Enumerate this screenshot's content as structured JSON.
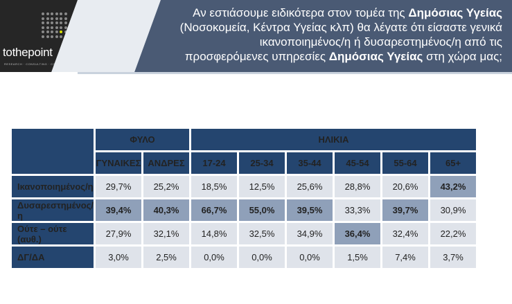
{
  "brand": {
    "logo_text": "tothepoint",
    "subtitle": "RESEARCH · CONSULTING · COMMUNICATION"
  },
  "question": {
    "line1_pre": "Αν εστιάσουμε ειδικότερα στον τομέα της ",
    "line1_bold": "Δημόσιας Υγείας",
    "line2": "(Νοσοκομεία, Κέντρα Υγείας κλπ) θα λέγατε ότι είσαστε γενικά",
    "line3": "ικανοποιημένος/η ή δυσαρεστημένος/η από τις",
    "line4_pre": "προσφερόμενες υπηρεσίες ",
    "line4_bold": "Δημόσιας Υγείας",
    "line4_post": " στη χώρα μας;"
  },
  "table": {
    "group_gender": "ΦΥΛΟ",
    "group_age": "ΗΛΙΚΙΑ",
    "columns": [
      "ΓΥΝΑΙΚΕΣ",
      "ΑΝΔΡΕΣ",
      "17-24",
      "25-34",
      "35-44",
      "45-54",
      "55-64",
      "65+"
    ],
    "rows": [
      {
        "label": "Ικανοποιημένος/η",
        "values": [
          "29,7%",
          "25,2%",
          "18,5%",
          "12,5%",
          "25,6%",
          "28,8%",
          "20,6%",
          "43,2%"
        ],
        "hi": [
          false,
          false,
          false,
          false,
          false,
          false,
          false,
          true
        ]
      },
      {
        "label": "Δυσαρεστημένος/η",
        "values": [
          "39,4%",
          "40,3%",
          "66,7%",
          "55,0%",
          "39,5%",
          "33,3%",
          "39,7%",
          "30,9%"
        ],
        "hi": [
          true,
          true,
          true,
          true,
          true,
          false,
          true,
          false
        ]
      },
      {
        "label": "Ούτε – ούτε (αυθ.)",
        "values": [
          "27,9%",
          "32,1%",
          "14,8%",
          "32,5%",
          "34,9%",
          "36,4%",
          "32,4%",
          "22,2%"
        ],
        "hi": [
          false,
          false,
          false,
          false,
          false,
          true,
          false,
          false
        ]
      },
      {
        "label": "ΔΓ/ΔΑ",
        "values": [
          "3,0%",
          "2,5%",
          "0,0%",
          "0,0%",
          "0,0%",
          "1,5%",
          "7,4%",
          "3,7%"
        ],
        "hi": [
          false,
          false,
          false,
          false,
          false,
          false,
          false,
          false
        ]
      }
    ]
  }
}
